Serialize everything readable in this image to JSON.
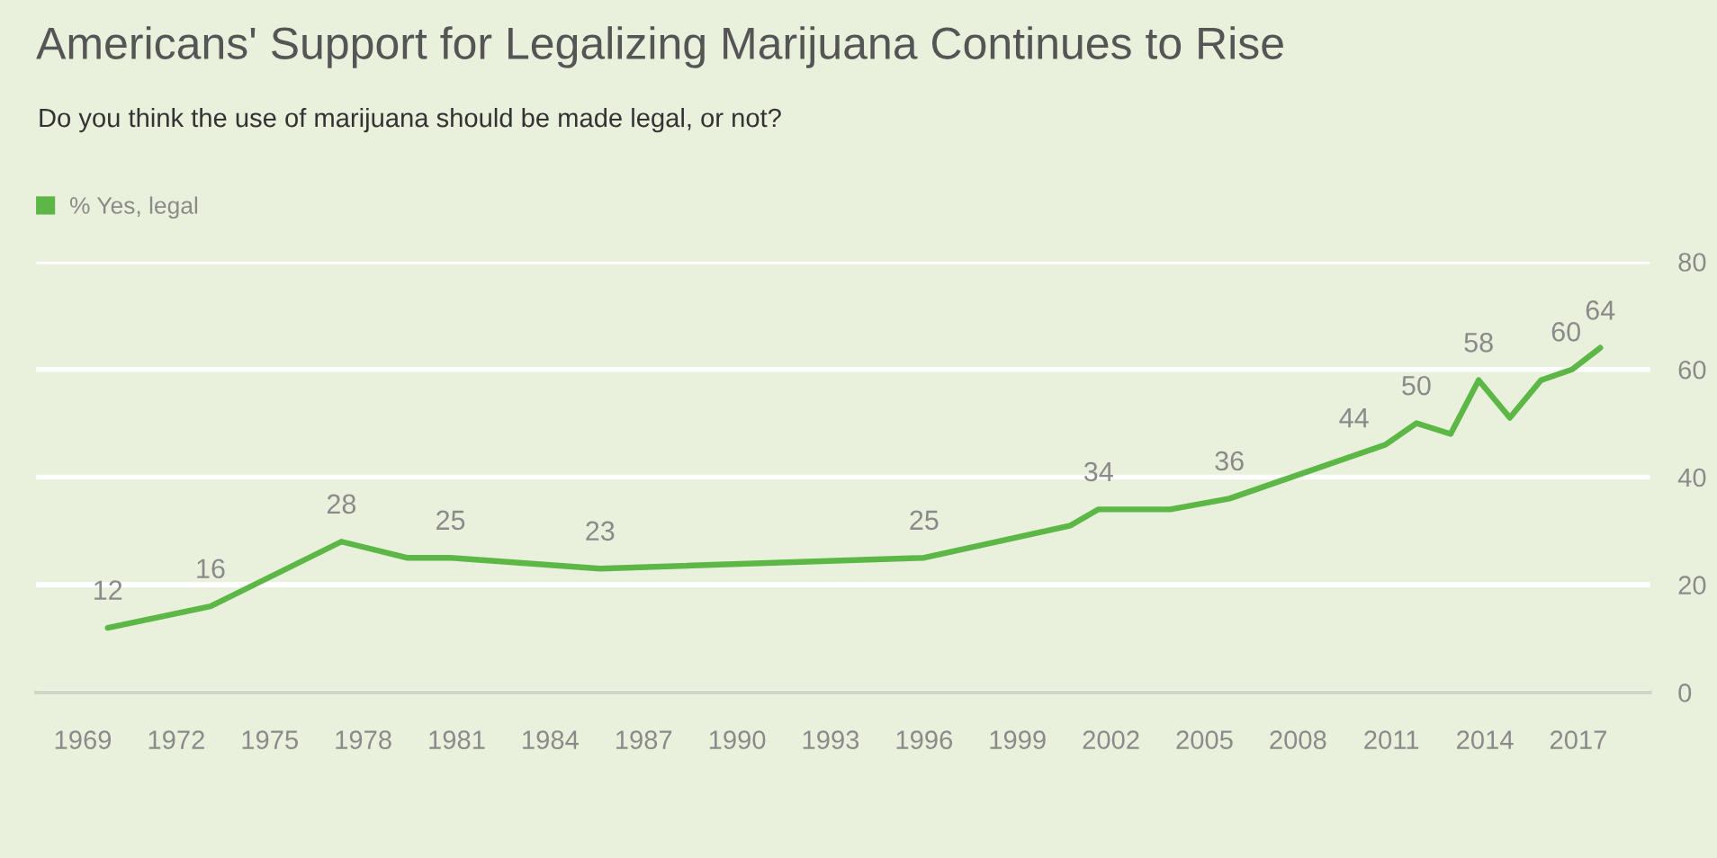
{
  "chart_data": {
    "type": "line",
    "title": "Americans' Support for Legalizing Marijuana Continues to Rise",
    "subtitle": "Do you think the use of marijuana should be made legal, or not?",
    "x": [
      1969.8,
      1973.1,
      1977.3,
      1979.4,
      1980.8,
      1985.6,
      1996.0,
      2000.7,
      2001.6,
      2003.9,
      2005.8,
      2009.8,
      2010.8,
      2011.8,
      2012.9,
      2013.8,
      2014.8,
      2015.8,
      2016.8,
      2017.7
    ],
    "series": [
      {
        "name": "% Yes, legal",
        "color": "#5cb746",
        "values": [
          12,
          16,
          28,
          25,
          25,
          23,
          25,
          31,
          34,
          34,
          36,
          44,
          46,
          50,
          48,
          58,
          51,
          58,
          60,
          64
        ],
        "value_labels": [
          "12",
          "16",
          "28",
          null,
          "25",
          "23",
          "25",
          null,
          "34",
          null,
          "36",
          "44",
          null,
          "50",
          null,
          "58",
          null,
          null,
          "60",
          "64"
        ]
      }
    ],
    "xlim": [
      1967.5,
      2019.3
    ],
    "xticks": [
      1969,
      1972,
      1975,
      1978,
      1981,
      1984,
      1987,
      1990,
      1993,
      1996,
      1999,
      2002,
      2005,
      2008,
      2011,
      2014,
      2017
    ],
    "ylim": [
      0,
      80
    ],
    "yticks": [
      0,
      20,
      40,
      60,
      80
    ],
    "grid": "y",
    "legend": "top left"
  }
}
